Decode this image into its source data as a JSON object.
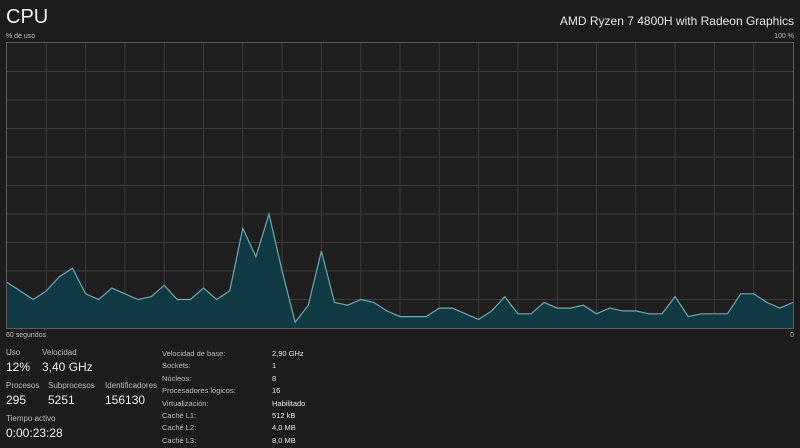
{
  "header": {
    "title": "CPU",
    "cpu_model": "AMD Ryzen 7 4800H with Radeon Graphics"
  },
  "graph": {
    "top_left_label": "% de uso",
    "top_right_label": "100 %",
    "bottom_left_label": "60 segundos",
    "bottom_right_label": "0",
    "line_color": "#6aa9b5",
    "fill_color": "#0f3a44",
    "grid_color": "#3c3c3c",
    "usage_percent_series": [
      16,
      13,
      10,
      13,
      18,
      21,
      12,
      10,
      14,
      12,
      10,
      11,
      15,
      10,
      10,
      14,
      10,
      13,
      35,
      25,
      40,
      20,
      2,
      8,
      27,
      9,
      8,
      10,
      9,
      6,
      4,
      4,
      4,
      7,
      7,
      5,
      3,
      6,
      11,
      5,
      5,
      9,
      7,
      7,
      8,
      5,
      7,
      6,
      6,
      5,
      5,
      11,
      4,
      5,
      5,
      5,
      12,
      12,
      9,
      7,
      9
    ]
  },
  "stats": {
    "uso": {
      "label": "Uso",
      "value": "12%"
    },
    "velocidad": {
      "label": "Velocidad",
      "value": "3,40 GHz"
    },
    "procesos": {
      "label": "Procesos",
      "value": "295"
    },
    "subprocesos": {
      "label": "Subprocesos",
      "value": "5251"
    },
    "identificadores": {
      "label": "Identificadores",
      "value": "156130"
    },
    "tiempo_activo": {
      "label": "Tiempo activo",
      "value": "0:00:23:28"
    }
  },
  "details": [
    {
      "key": "Velocidad de base:",
      "value": "2,90 GHz"
    },
    {
      "key": "Sockets:",
      "value": "1"
    },
    {
      "key": "Núcleos:",
      "value": "8"
    },
    {
      "key": "Procesadores lógicos:",
      "value": "16"
    },
    {
      "key": "Virtualización:",
      "value": "Habilitado"
    },
    {
      "key": "Caché L1:",
      "value": "512 kB"
    },
    {
      "key": "Caché L2:",
      "value": "4,0 MB"
    },
    {
      "key": "Caché L3:",
      "value": "8,0 MB"
    }
  ]
}
